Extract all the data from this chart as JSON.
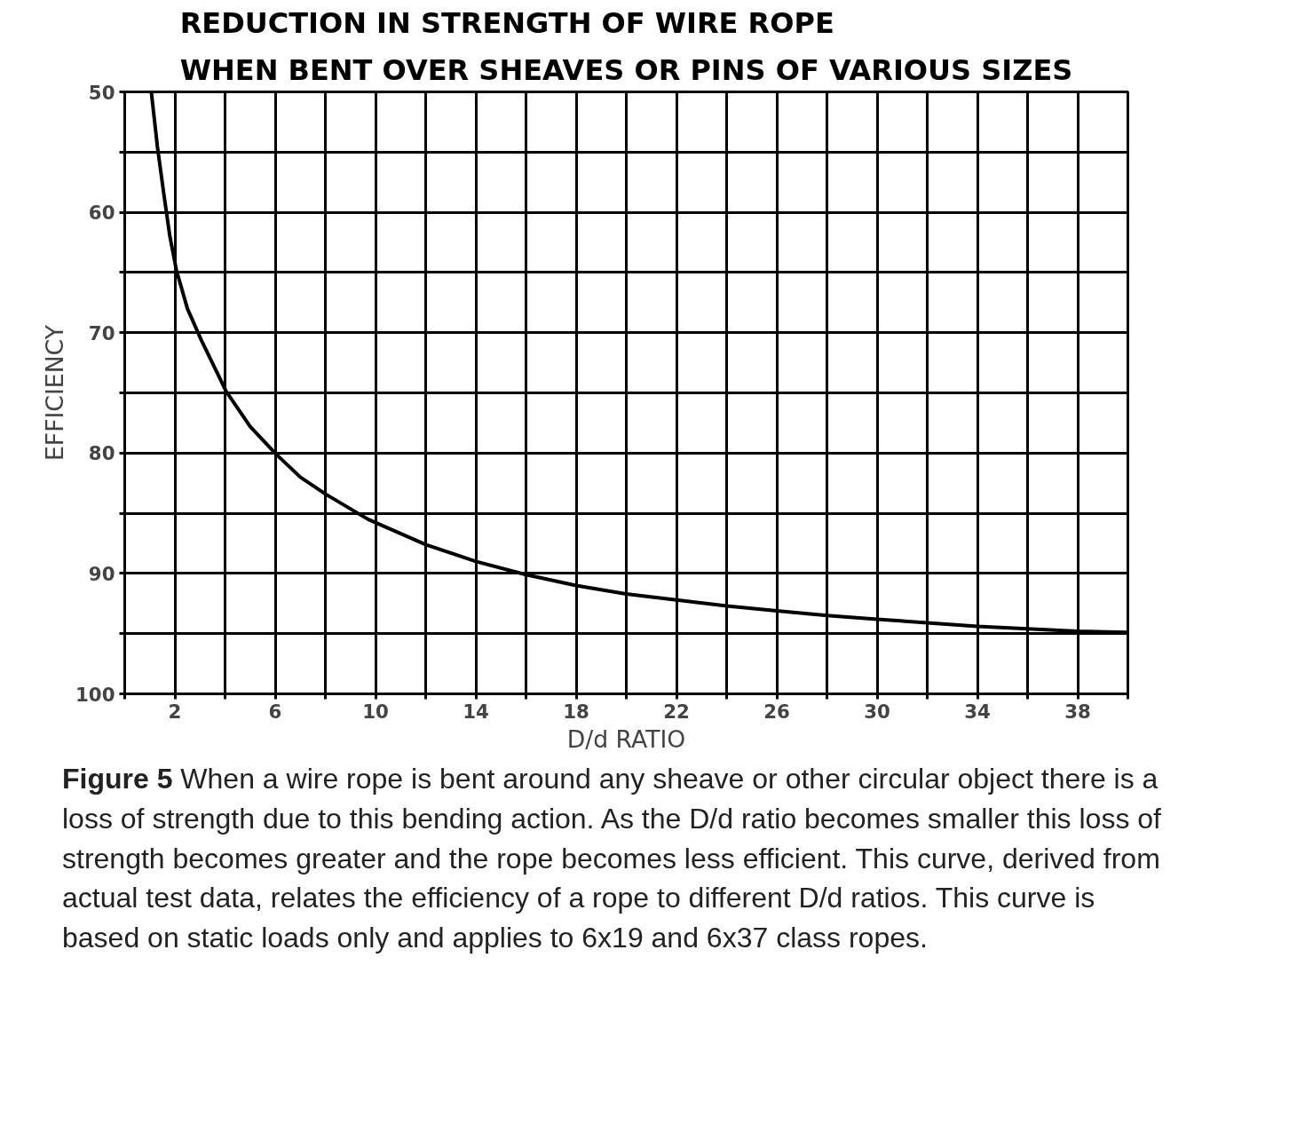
{
  "chart_data": {
    "type": "line",
    "title": "REDUCTION IN STRENGTH OF WIRE ROPE\nWHEN BENT OVER SHEAVES OR PINS OF VARIOUS SIZES",
    "xlabel": "D/d RATIO",
    "ylabel": "EFFICIENCY",
    "series": [
      {
        "color": "#000000",
        "x": [
          1.06,
          1.3,
          1.56,
          1.8,
          2.06,
          2.5,
          3.05,
          4.05,
          5,
          6.04,
          7,
          8.0,
          9.7,
          12.0,
          14,
          16,
          18,
          20,
          22,
          24,
          26,
          28,
          30,
          32,
          34,
          36,
          38,
          40
        ],
        "values": [
          50,
          54.5,
          58.5,
          62,
          64.8,
          68,
          70.6,
          74.9,
          77.8,
          80.1,
          82,
          83.4,
          85.5,
          87.6,
          89,
          90.1,
          91,
          91.7,
          92.2,
          92.7,
          93.1,
          93.5,
          93.8,
          94.1,
          94.4,
          94.6,
          94.8,
          94.9
        ]
      }
    ],
    "xlim": [
      0,
      40
    ],
    "ylim": [
      100,
      50
    ],
    "xticks": [
      {
        "value": 0,
        "label": null
      },
      2,
      {
        "value": 4,
        "label": null
      },
      6,
      {
        "value": 8,
        "label": null
      },
      10,
      {
        "value": 12,
        "label": null
      },
      14,
      {
        "value": 16,
        "label": null
      },
      18,
      {
        "value": 20,
        "label": null
      },
      22,
      {
        "value": 24,
        "label": null
      },
      26,
      {
        "value": 28,
        "label": null
      },
      30,
      {
        "value": 32,
        "label": null
      },
      34,
      {
        "value": 36,
        "label": null
      },
      38,
      {
        "value": 40,
        "label": null
      }
    ],
    "yticks": [
      50,
      {
        "value": 55,
        "label": null
      },
      60,
      {
        "value": 65,
        "label": null
      },
      70,
      {
        "value": 75,
        "label": null
      },
      80,
      {
        "value": 85,
        "label": null
      },
      90,
      {
        "value": 95,
        "label": null
      },
      100
    ],
    "grid": true,
    "marker": "none",
    "line_style": "solid",
    "annotations": [
      "Figure 5",
      "When a wire rope is bent around any sheave or other circular object there is a loss of strength due to this bending action. As the D/d ratio becomes smaller this loss of strength becomes greater and the rope becomes less efficient.  This curve, derived from actual test data, relates the efficiency of a rope to different D/d ratios. This curve is based on static loads only and applies to 6x19 and 6x37 class ropes."
    ]
  }
}
